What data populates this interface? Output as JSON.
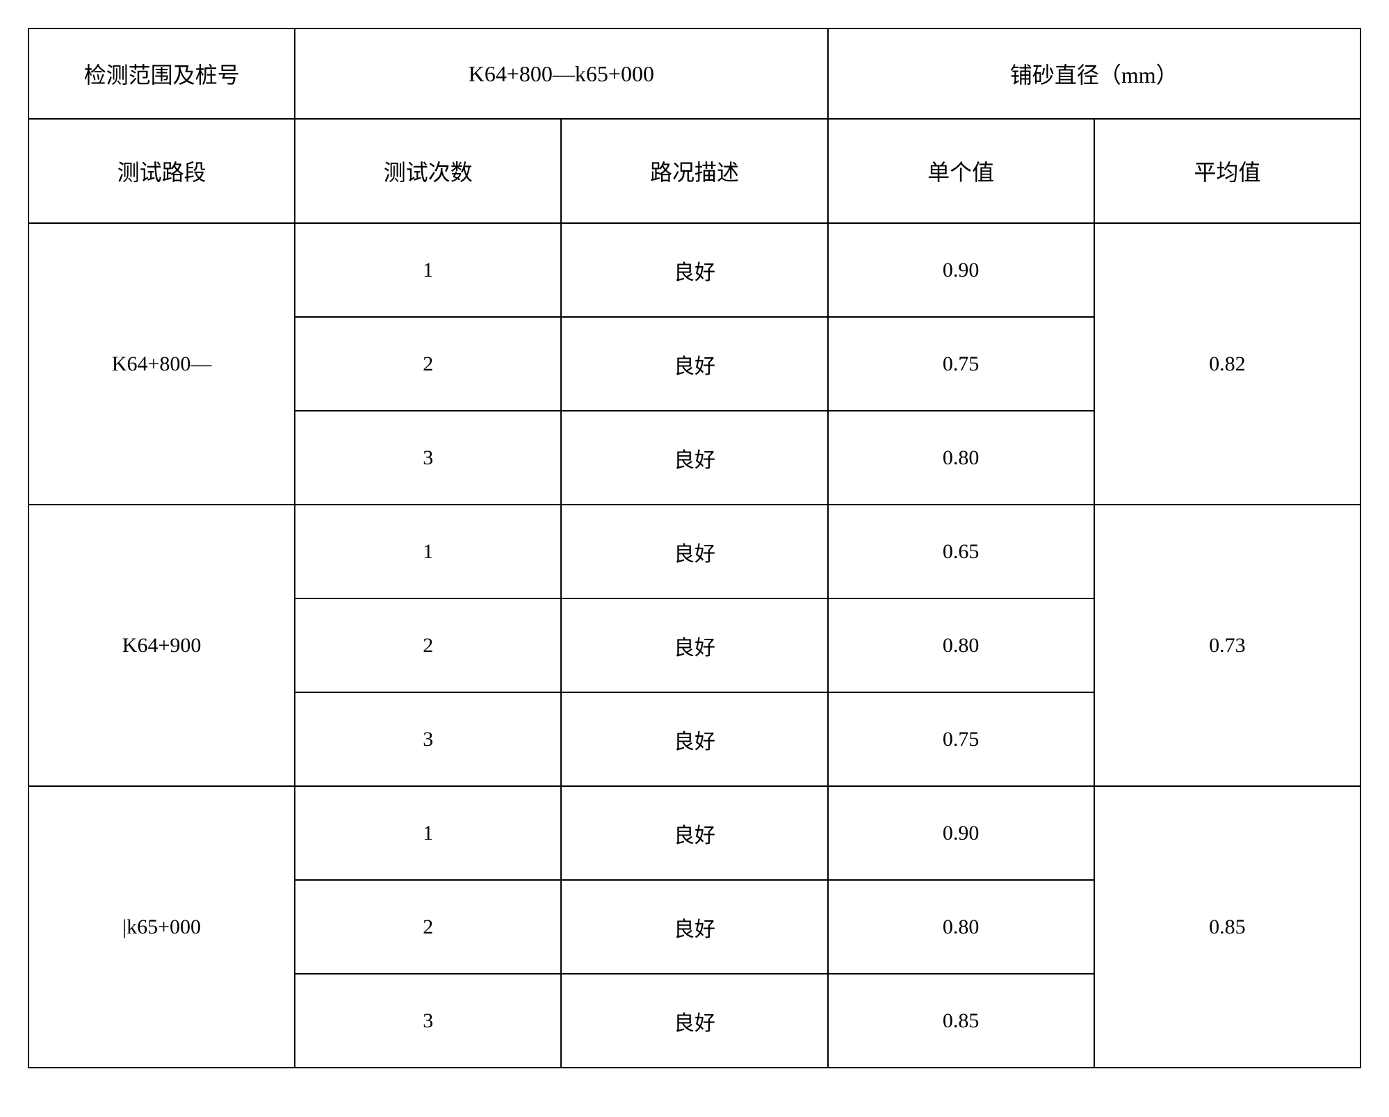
{
  "table": {
    "type": "table",
    "border_color": "#000000",
    "border_width": 2,
    "background_color": "#ffffff",
    "text_color": "#000000",
    "font_family": "SimSun",
    "header_fontsize": 32,
    "cell_fontsize": 30,
    "header_row_1": {
      "col1": "检测范围及桩号",
      "col2_3": "K64+800—k65+000",
      "col4_5": "铺砂直径（mm）"
    },
    "header_row_2": {
      "col1": "测试路段",
      "col2": "测试次数",
      "col3": "路况描述",
      "col4": "单个值",
      "col5": "平均值"
    },
    "sections": [
      {
        "label": "K64+800—",
        "average": "0.82",
        "rows": [
          {
            "count": "1",
            "condition": "良好",
            "value": "0.90"
          },
          {
            "count": "2",
            "condition": "良好",
            "value": "0.75"
          },
          {
            "count": "3",
            "condition": "良好",
            "value": "0.80"
          }
        ]
      },
      {
        "label": "K64+900",
        "average": "0.73",
        "rows": [
          {
            "count": "1",
            "condition": "良好",
            "value": "0.65"
          },
          {
            "count": "2",
            "condition": "良好",
            "value": "0.80"
          },
          {
            "count": "3",
            "condition": "良好",
            "value": "0.75"
          }
        ]
      },
      {
        "label": "|k65+000",
        "average": "0.85",
        "rows": [
          {
            "count": "1",
            "condition": "良好",
            "value": "0.90"
          },
          {
            "count": "2",
            "condition": "良好",
            "value": "0.80"
          },
          {
            "count": "3",
            "condition": "良好",
            "value": "0.85"
          }
        ]
      }
    ],
    "column_widths": [
      "20%",
      "20%",
      "20%",
      "20%",
      "20%"
    ],
    "row_heights": {
      "header1": 130,
      "header2": 150,
      "data": 135
    }
  }
}
